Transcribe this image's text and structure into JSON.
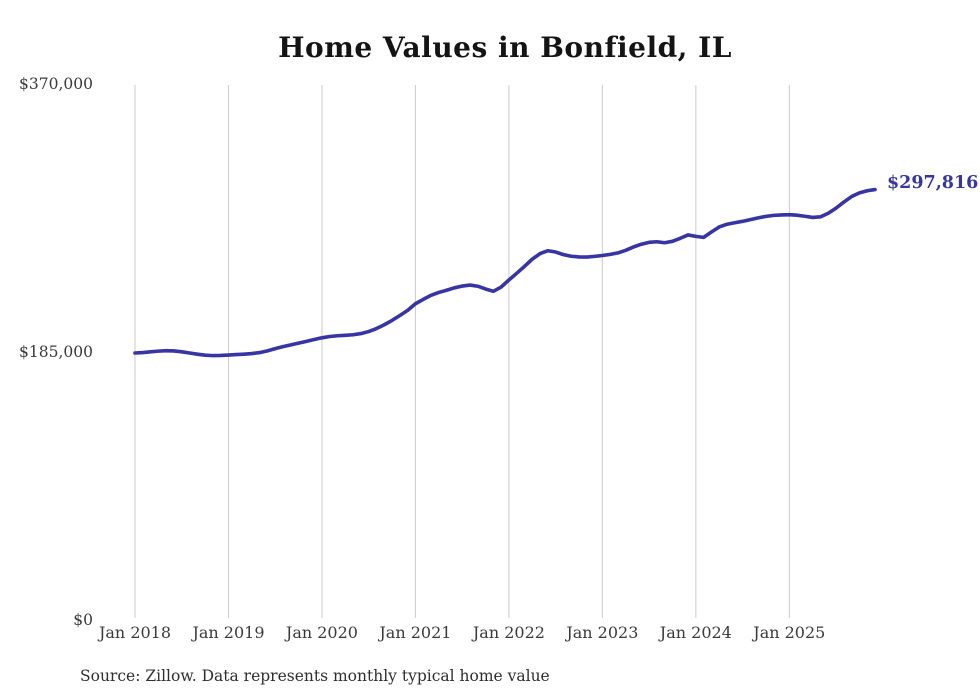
{
  "colors": {
    "line": "#3734a3",
    "end_label": "#3734a3",
    "gridline": "#cbcbcb",
    "tick_text": "#3a3a3a",
    "title_text": "#141414",
    "background": "#ffffff"
  },
  "chart_data": {
    "type": "line",
    "title": "Home Values in Bonfield, IL",
    "source": "Source: Zillow. Data represents monthly typical home value",
    "final_value_label": "$297,816",
    "xlabel": "",
    "ylabel": "",
    "ylim": [
      0,
      370000
    ],
    "grid": "vertical-only",
    "legend": "none",
    "frequency": "monthly",
    "start_month": "2018-01",
    "end_month": "2025-12",
    "x_tick_labels": [
      "Jan 2018",
      "Jan 2019",
      "Jan 2020",
      "Jan 2021",
      "Jan 2022",
      "Jan 2023",
      "Jan 2024",
      "Jan 2025"
    ],
    "y_ticks": [
      {
        "label": "$0",
        "value": 0
      },
      {
        "label": "$185,000",
        "value": 185000
      },
      {
        "label": "$370,000",
        "value": 370000
      }
    ],
    "values": [
      185000,
      185300,
      185800,
      186300,
      186600,
      186400,
      185800,
      185000,
      184200,
      183500,
      183200,
      183300,
      183600,
      183900,
      184200,
      184600,
      185300,
      186500,
      188000,
      189400,
      190600,
      191800,
      193000,
      194300,
      195500,
      196400,
      196900,
      197200,
      197600,
      198400,
      199800,
      201900,
      204500,
      207500,
      210900,
      214400,
      219000,
      222000,
      224800,
      226800,
      228300,
      230000,
      231200,
      231900,
      231100,
      229200,
      227600,
      230500,
      235400,
      240000,
      244800,
      249800,
      253600,
      255600,
      254700,
      252900,
      251800,
      251300,
      251200,
      251700,
      252300,
      253100,
      254100,
      255900,
      258200,
      260100,
      261400,
      261800,
      261100,
      262100,
      264200,
      266500,
      265500,
      264800,
      268500,
      272000,
      273900,
      274900,
      275900,
      277100,
      278300,
      279300,
      280000,
      280300,
      280500,
      280100,
      279400,
      278600,
      279000,
      281500,
      285000,
      289200,
      293000,
      295500,
      297000,
      297816
    ]
  }
}
